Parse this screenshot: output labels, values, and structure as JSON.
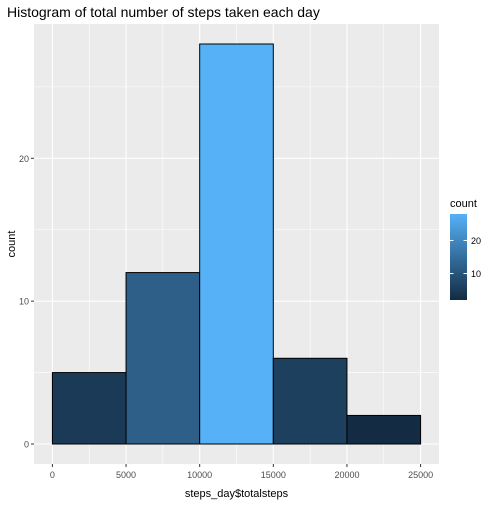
{
  "chart_data": {
    "type": "bar",
    "title": "Histogram of total number of steps taken each day",
    "xlabel": "steps_day$totalsteps",
    "ylabel": "count",
    "xlim": [
      -1250,
      26250
    ],
    "ylim": [
      -1.4,
      29.4
    ],
    "x_ticks": [
      0,
      5000,
      10000,
      15000,
      20000,
      25000
    ],
    "x_tick_labels": [
      "0",
      "5000",
      "10000",
      "15000",
      "20000",
      "25000"
    ],
    "y_ticks": [
      0,
      10,
      20
    ],
    "y_tick_labels": [
      "0",
      "10",
      "20"
    ],
    "bins": [
      {
        "x_start": 0,
        "x_end": 5000,
        "count": 5
      },
      {
        "x_start": 5000,
        "x_end": 10000,
        "count": 12
      },
      {
        "x_start": 10000,
        "x_end": 15000,
        "count": 28
      },
      {
        "x_start": 15000,
        "x_end": 20000,
        "count": 6
      },
      {
        "x_start": 20000,
        "x_end": 25000,
        "count": 2
      }
    ],
    "grid": true,
    "legend": {
      "title": "count",
      "position": "right",
      "type": "colorbar",
      "range": [
        2,
        28
      ],
      "ticks": [
        10,
        20
      ],
      "tick_labels": [
        "10",
        "20"
      ],
      "low_color": "#132B43",
      "high_color": "#56B1F7"
    },
    "colors": {
      "panel_background": "#EBEBEB",
      "grid_major": "#FFFFFF",
      "bar_outline": "#000000"
    }
  }
}
